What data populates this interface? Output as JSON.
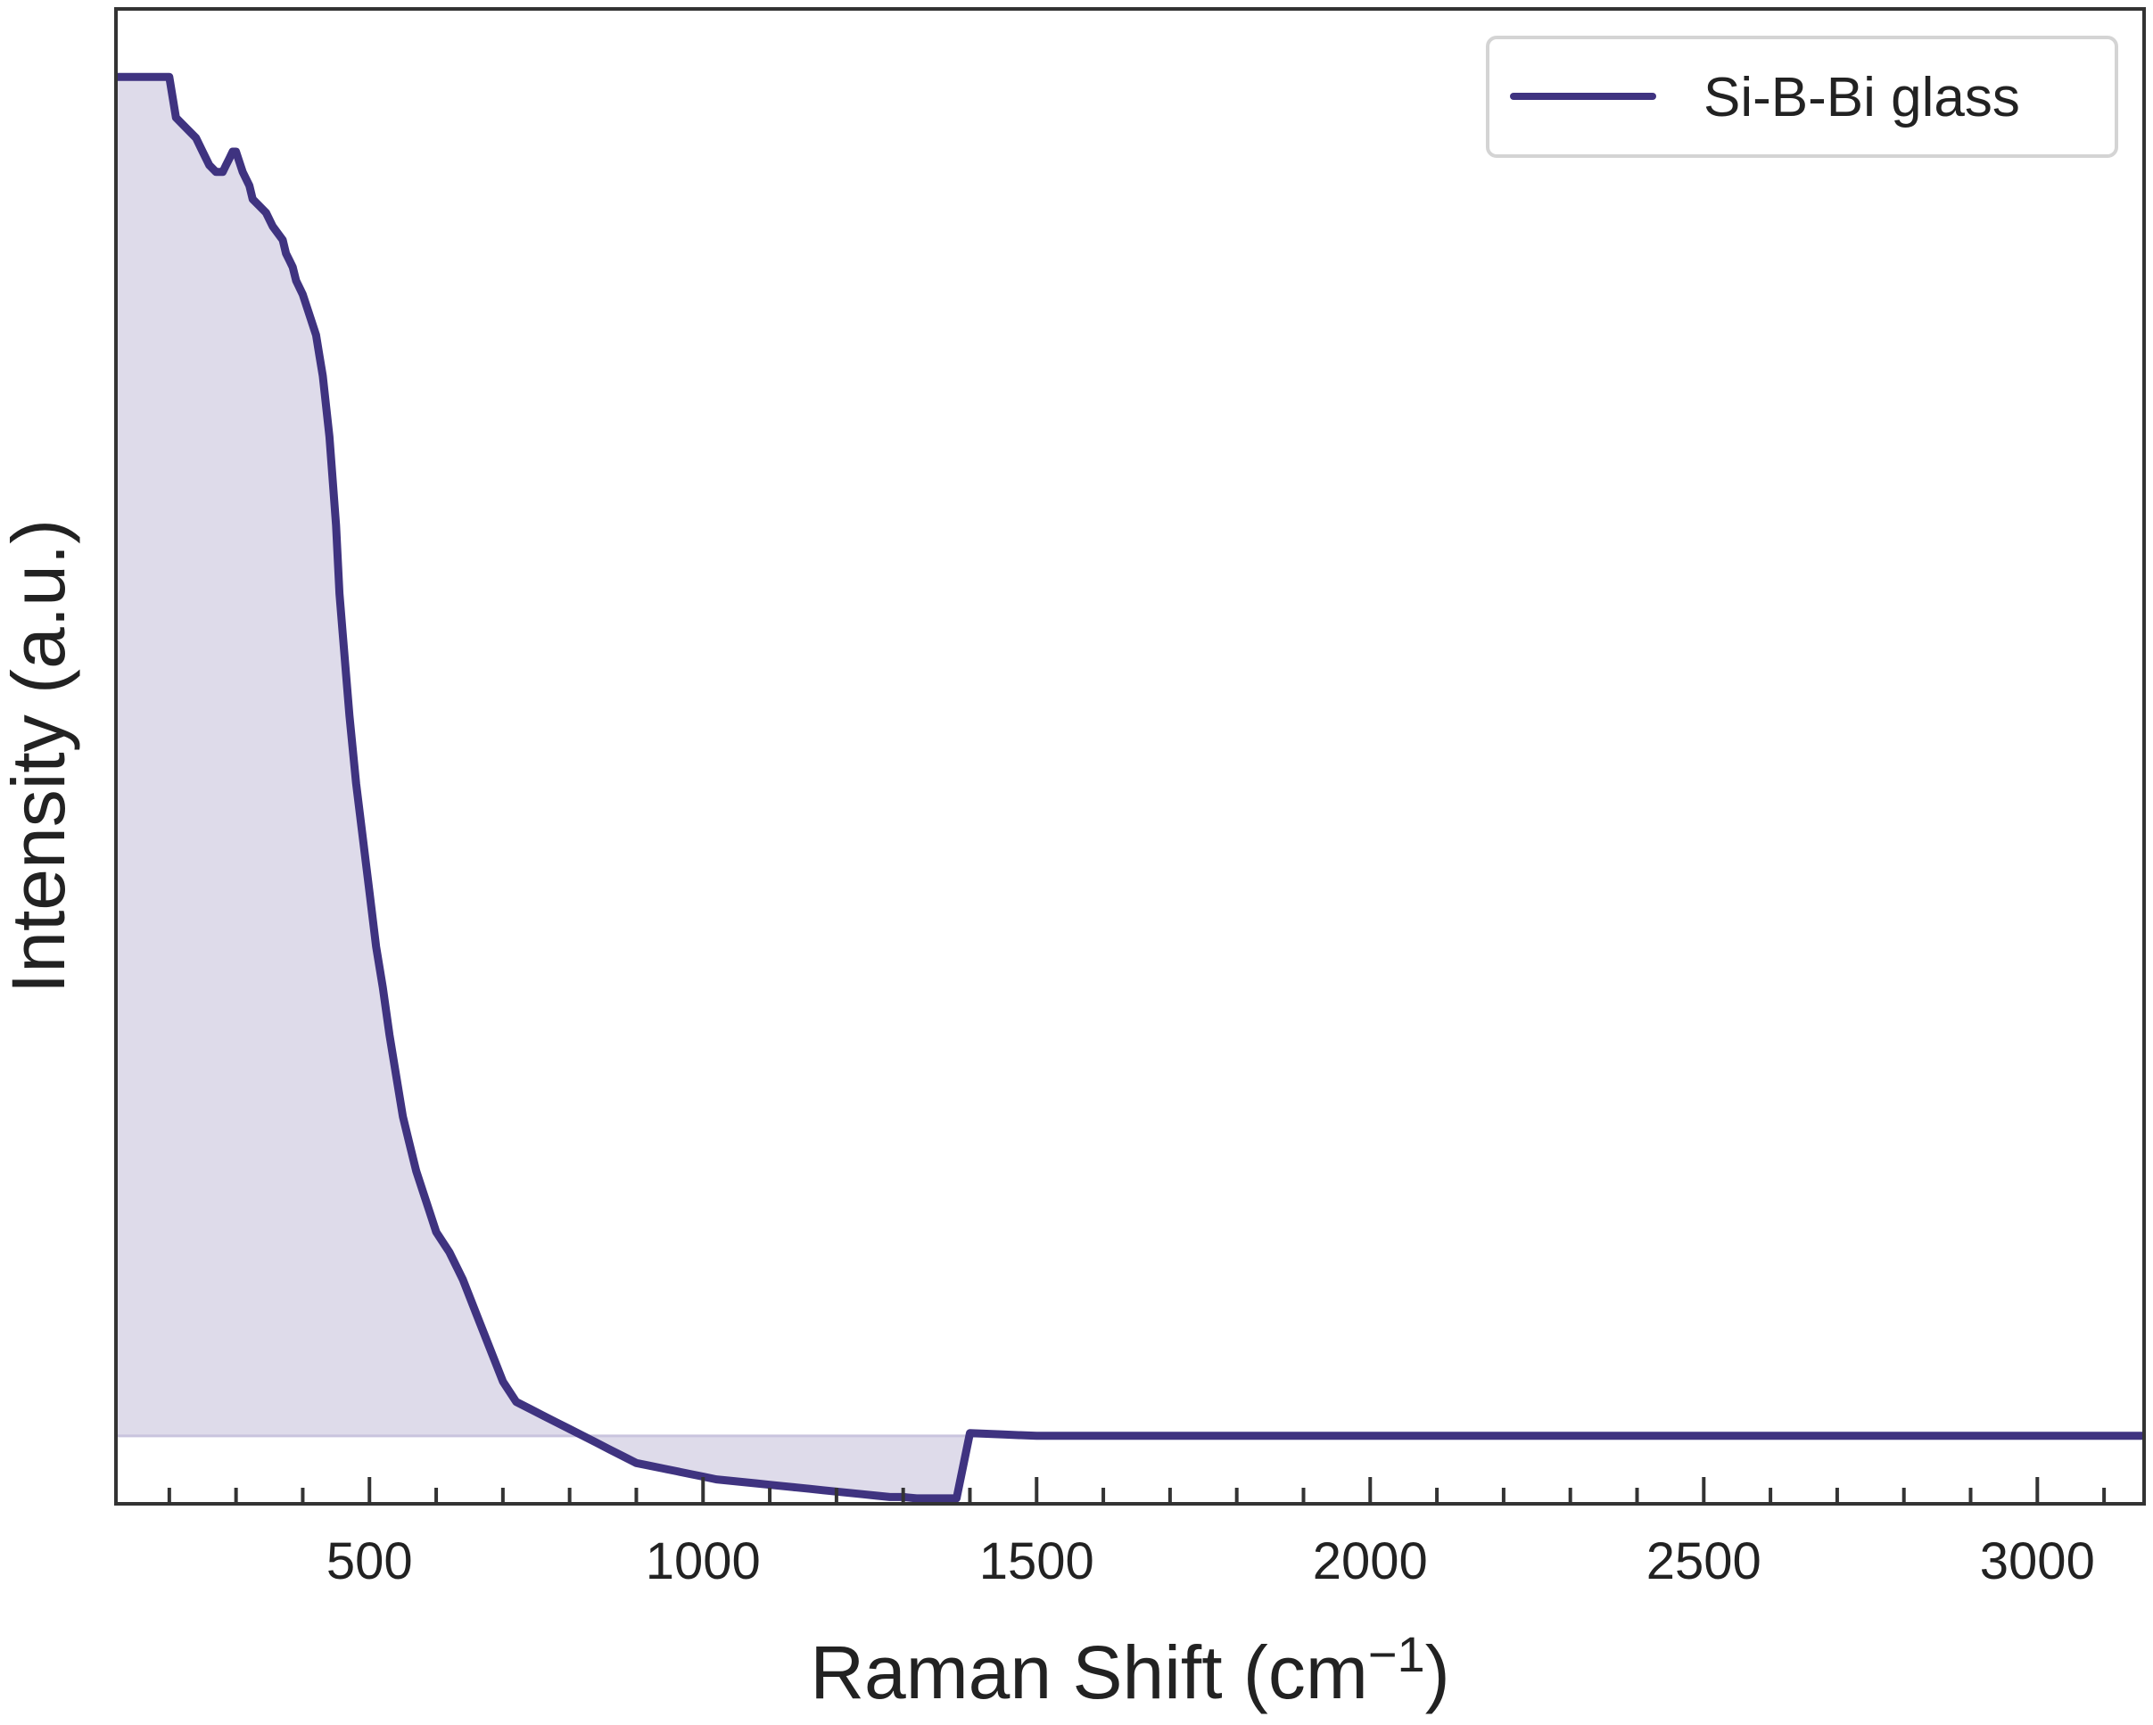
{
  "chart_data": {
    "type": "area",
    "title": "",
    "xlabel": "Raman Shift (cm",
    "xlabel_sup": "−1",
    "xlabel_close": ")",
    "ylabel": "Intensity (a.u.)",
    "xlim": [
      120,
      3160
    ],
    "ylim": [
      -0.05,
      1.05
    ],
    "x_ticks": [
      500,
      1000,
      1500,
      2000,
      2500,
      3000
    ],
    "x_minor_step": 100,
    "y_ticks_shown": false,
    "grid": false,
    "legend_position": "top-right",
    "series": [
      {
        "name": "Si-B-Bi glass",
        "color": "#3f3380",
        "fill_color": "#dedbea",
        "x": [
          120,
          200,
          210,
          220,
          240,
          250,
          260,
          270,
          280,
          285,
          290,
          295,
          300,
          310,
          320,
          325,
          335,
          345,
          355,
          370,
          375,
          380,
          385,
          390,
          400,
          410,
          420,
          425,
          430,
          440,
          450,
          455,
          460,
          470,
          480,
          490,
          500,
          510,
          520,
          530,
          540,
          550,
          560,
          570,
          580,
          590,
          600,
          620,
          640,
          660,
          680,
          700,
          720,
          740,
          760,
          780,
          800,
          820,
          840,
          860,
          880,
          900,
          920,
          940,
          960,
          980,
          1000,
          1020,
          1040,
          1060,
          1080,
          1100,
          1120,
          1140,
          1160,
          1180,
          1200,
          1220,
          1240,
          1260,
          1280,
          1300,
          1320,
          1340,
          1360,
          1380,
          1400,
          1450,
          1500,
          1550,
          1600,
          1700,
          1800,
          1900,
          2000,
          2100,
          2200,
          2300,
          2320,
          2340,
          2400,
          2470,
          2500,
          2600,
          2700,
          2800,
          2900,
          3000,
          3100,
          3160
        ],
        "y": [
          1.0,
          1.0,
          0.97,
          0.965,
          0.955,
          0.945,
          0.935,
          0.93,
          0.93,
          0.935,
          0.94,
          0.945,
          0.945,
          0.93,
          0.92,
          0.91,
          0.905,
          0.9,
          0.89,
          0.88,
          0.87,
          0.865,
          0.86,
          0.85,
          0.84,
          0.825,
          0.81,
          0.795,
          0.78,
          0.735,
          0.67,
          0.62,
          0.59,
          0.53,
          0.48,
          0.44,
          0.4,
          0.36,
          0.33,
          0.295,
          0.265,
          0.235,
          0.215,
          0.195,
          0.18,
          0.165,
          0.15,
          0.135,
          0.115,
          0.09,
          0.065,
          0.04,
          0.025,
          0.02,
          0.015,
          0.01,
          0.005,
          0.0,
          -0.005,
          -0.01,
          -0.015,
          -0.02,
          -0.022,
          -0.024,
          -0.026,
          -0.028,
          -0.03,
          -0.032,
          -0.033,
          -0.034,
          -0.035,
          -0.036,
          -0.037,
          -0.038,
          -0.039,
          -0.04,
          -0.041,
          -0.042,
          -0.043,
          -0.044,
          -0.045,
          -0.045,
          -0.046,
          -0.046,
          -0.046,
          -0.046,
          0.002,
          0.001,
          0.0,
          0.0,
          0.0,
          0.0,
          0.0,
          0.0,
          0.0,
          0.0,
          0.0,
          0.0,
          0.0,
          0.0,
          0.0,
          0.0,
          0.0,
          0.0,
          0.0,
          0.0,
          0.0,
          0.0,
          0.0,
          0.0
        ]
      }
    ]
  }
}
